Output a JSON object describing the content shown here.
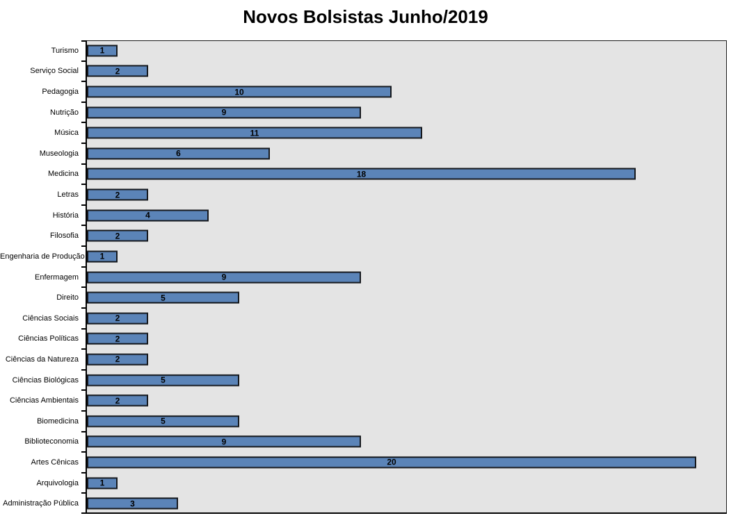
{
  "chart_data": {
    "type": "bar",
    "orientation": "horizontal",
    "title": "Novos Bolsistas Junho/2019",
    "categories": [
      "Turismo",
      "Serviço Social",
      "Pedagogia",
      "Nutrição",
      "Música",
      "Museologia",
      "Medicina",
      "Letras",
      "História",
      "Filosofia",
      "Engenharia de Produção",
      "Enfermagem",
      "Direito",
      "Ciências Sociais",
      "Ciências Políticas",
      "Ciências da Natureza",
      "Ciências Biológicas",
      "Ciências Ambientais",
      "Biomedicina",
      "Biblioteconomia",
      "Artes Cênicas",
      "Arquivologia",
      "Administração Pública"
    ],
    "values": [
      1,
      2,
      10,
      9,
      11,
      6,
      18,
      2,
      4,
      2,
      1,
      9,
      5,
      2,
      2,
      2,
      5,
      2,
      5,
      9,
      20,
      1,
      3
    ],
    "xlabel": "",
    "ylabel": "",
    "xlim": [
      0,
      21
    ],
    "grid": false,
    "legend": false,
    "data_labels": "center",
    "bar_color": "#5b84b8",
    "bar_border_color": "#15181d",
    "plot_bg": "#e4e4e4",
    "page_bg": "#ffffff",
    "title_color": "#000000"
  }
}
